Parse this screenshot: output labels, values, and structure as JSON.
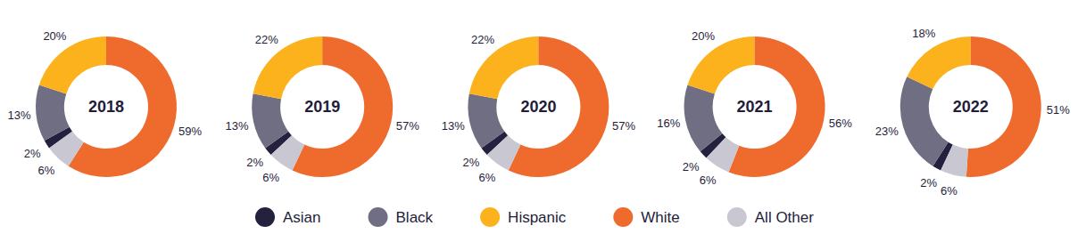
{
  "chart_data": [
    {
      "type": "pie",
      "title": "2018",
      "categories": [
        "Asian",
        "Black",
        "Hispanic",
        "White",
        "All Other"
      ],
      "values": [
        2,
        13,
        20,
        59,
        6
      ],
      "value_labels": [
        "2%",
        "13%",
        "20%",
        "59%",
        "6%"
      ],
      "colors": [
        "#24213f",
        "#6f6e82",
        "#fbb21c",
        "#ee6b2d",
        "#c9c8d2"
      ],
      "data_labels": true,
      "legend": "bottom"
    },
    {
      "type": "pie",
      "title": "2019",
      "categories": [
        "Asian",
        "Black",
        "Hispanic",
        "White",
        "All Other"
      ],
      "values": [
        2,
        13,
        22,
        57,
        6
      ],
      "value_labels": [
        "2%",
        "13%",
        "22%",
        "57%",
        "6%"
      ],
      "colors": [
        "#24213f",
        "#6f6e82",
        "#fbb21c",
        "#ee6b2d",
        "#c9c8d2"
      ],
      "data_labels": true
    },
    {
      "type": "pie",
      "title": "2020",
      "categories": [
        "Asian",
        "Black",
        "Hispanic",
        "White",
        "All Other"
      ],
      "values": [
        2,
        13,
        22,
        57,
        6
      ],
      "value_labels": [
        "2%",
        "13%",
        "22%",
        "57%",
        "6%"
      ],
      "colors": [
        "#24213f",
        "#6f6e82",
        "#fbb21c",
        "#ee6b2d",
        "#c9c8d2"
      ],
      "data_labels": true
    },
    {
      "type": "pie",
      "title": "2021",
      "categories": [
        "Asian",
        "Black",
        "Hispanic",
        "White",
        "All Other"
      ],
      "values": [
        2,
        16,
        20,
        56,
        6
      ],
      "value_labels": [
        "2%",
        "16%",
        "20%",
        "56%",
        "6%"
      ],
      "colors": [
        "#24213f",
        "#6f6e82",
        "#fbb21c",
        "#ee6b2d",
        "#c9c8d2"
      ],
      "data_labels": true
    },
    {
      "type": "pie",
      "title": "2022",
      "categories": [
        "Asian",
        "Black",
        "Hispanic",
        "White",
        "All Other"
      ],
      "values": [
        2,
        23,
        18,
        51,
        6
      ],
      "value_labels": [
        "2%",
        "23%",
        "18%",
        "51%",
        "6%"
      ],
      "colors": [
        "#24213f",
        "#6f6e82",
        "#fbb21c",
        "#ee6b2d",
        "#c9c8d2"
      ],
      "data_labels": true
    }
  ]
}
